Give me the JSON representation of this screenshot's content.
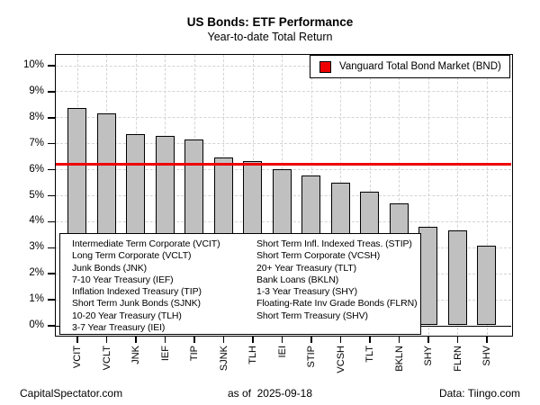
{
  "title": "US Bonds: ETF Performance",
  "subtitle": "Year-to-date Total Return",
  "legend": {
    "label": "Vanguard Total Bond Market (BND)",
    "swatch_color": "#ee0000"
  },
  "key_box": {
    "left_column": [
      "Intermediate Term Corporate (VCIT)",
      "Long Term Corporate (VCLT)",
      "Junk Bonds (JNK)",
      "7-10 Year Treasury (IEF)",
      "Inflation Indexed Treasury (TIP)",
      "Short Term Junk Bonds (SJNK)",
      "10-20 Year Treasury (TLH)",
      "3-7 Year Treasury (IEI)"
    ],
    "right_column": [
      "Short Term Infl. Indexed Treas. (STIP)",
      "Short Term Corporate (VCSH)",
      "20+ Year Treasury (TLT)",
      "Bank Loans (BKLN)",
      "1-3 Year Treasury (SHY)",
      "Floating-Rate Inv Grade Bonds (FLRN)",
      "Short Term Treasury (SHV)"
    ]
  },
  "footer": {
    "left": "CapitalSpectator.com",
    "center": "as of  2025-09-18",
    "right": "Data: Tiingo.com"
  },
  "chart_data": {
    "type": "bar",
    "title": "US Bonds: ETF Performance",
    "subtitle": "Year-to-date Total Return",
    "categories": [
      "VCIT",
      "VCLT",
      "JNK",
      "IEF",
      "TIP",
      "SJNK",
      "TLH",
      "IEI",
      "STIP",
      "VCSH",
      "TLT",
      "BKLN",
      "SHY",
      "FLRN",
      "SHV"
    ],
    "values": [
      8.35,
      8.15,
      7.35,
      7.3,
      7.15,
      6.45,
      6.3,
      6.0,
      5.75,
      5.5,
      5.15,
      4.7,
      3.8,
      3.65,
      3.05
    ],
    "benchmark_line": {
      "label": "Vanguard Total Bond Market (BND)",
      "value": 6.2,
      "color": "#ee0000"
    },
    "ylabel": "",
    "xlabel": "",
    "ylim": [
      0,
      10
    ],
    "ytick_labels": [
      "0%",
      "1%",
      "2%",
      "3%",
      "4%",
      "5%",
      "6%",
      "7%",
      "8%",
      "9%",
      "10%"
    ],
    "grid": "dashed both axes",
    "legend_position": "top-right",
    "bar_fill": "#c0c0c0",
    "bar_border": "#000000"
  }
}
